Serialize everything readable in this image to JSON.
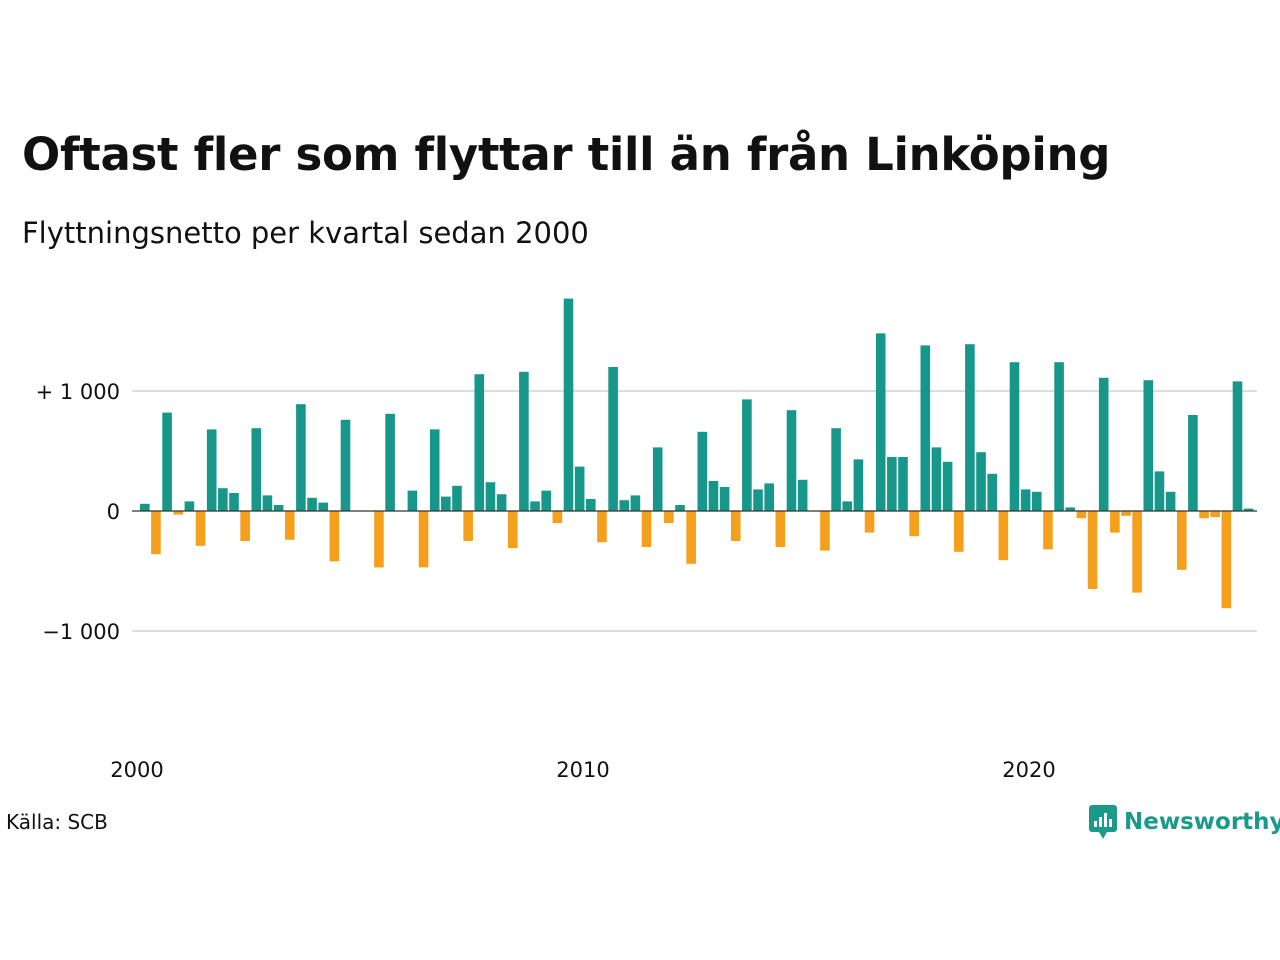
{
  "title": "Oftast fler som flyttar till än från Linköping",
  "subtitle": "Flyttningsnetto per kvartal sedan 2000",
  "source": "Källa: SCB",
  "logo": {
    "text": "Newsworthy",
    "icon": "bar-chart-speech-icon",
    "color": "#1a9a8a"
  },
  "colors": {
    "positive": "#17978a",
    "negative": "#f5a01d",
    "grid": "#dddddd",
    "zero_line": "#333333"
  },
  "chart_data": {
    "type": "bar",
    "title": "Oftast fler som flyttar till än från Linköping",
    "subtitle": "Flyttningsnetto per kvartal sedan 2000",
    "x_unit": "quarter",
    "x_start": "2000 Q1",
    "x_ticks": [
      {
        "label": "2000",
        "quarter_index": 0
      },
      {
        "label": "2010",
        "quarter_index": 40
      },
      {
        "label": "2020",
        "quarter_index": 80
      }
    ],
    "y_ticks": [
      {
        "label": "+ 1 000",
        "value": 1000
      },
      {
        "label": "0",
        "value": 0
      },
      {
        "label": "−1 000",
        "value": -1000
      }
    ],
    "ylim": [
      -1800,
      1800
    ],
    "grid": true,
    "values": [
      60,
      -360,
      820,
      -30,
      80,
      -290,
      680,
      190,
      150,
      -250,
      690,
      130,
      50,
      -240,
      890,
      110,
      70,
      -420,
      760,
      0,
      0,
      -470,
      810,
      0,
      170,
      -470,
      680,
      120,
      210,
      -250,
      1140,
      240,
      140,
      -310,
      1160,
      80,
      170,
      -100,
      1770,
      370,
      100,
      -260,
      1200,
      90,
      130,
      -300,
      530,
      -100,
      50,
      -440,
      660,
      250,
      200,
      -250,
      930,
      180,
      230,
      -300,
      840,
      260,
      0,
      -330,
      690,
      80,
      430,
      -180,
      1480,
      450,
      450,
      -210,
      1380,
      530,
      410,
      -340,
      1390,
      490,
      310,
      -410,
      1240,
      180,
      160,
      -320,
      1240,
      30,
      -60,
      -650,
      1110,
      -180,
      -40,
      -680,
      1090,
      330,
      160,
      -490,
      800,
      -60,
      -50,
      -810,
      1080,
      20
    ]
  }
}
